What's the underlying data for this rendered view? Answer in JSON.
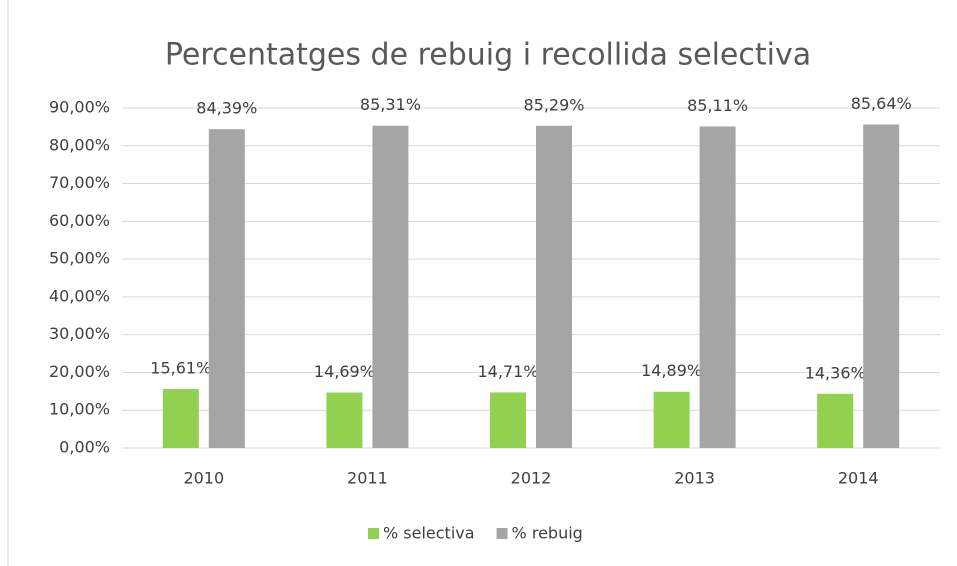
{
  "chart_data": {
    "type": "bar",
    "title": "Percentatges de rebuig i recollida selectiva",
    "categories": [
      "2010",
      "2011",
      "2012",
      "2013",
      "2014"
    ],
    "series": [
      {
        "name": "% selectiva",
        "color": "#92d050",
        "values": [
          15.61,
          14.69,
          14.71,
          14.89,
          14.36
        ],
        "value_labels": [
          "15,61%",
          "14,69%",
          "14,71%",
          "14,89%",
          "14,36%"
        ]
      },
      {
        "name": "% rebuig",
        "color": "#a5a5a5",
        "values": [
          84.39,
          85.31,
          85.29,
          85.11,
          85.64
        ],
        "value_labels": [
          "84,39%",
          "85,31%",
          "85,29%",
          "85,11%",
          "85,64%"
        ]
      }
    ],
    "ylim": [
      0,
      90
    ],
    "yticks": [
      {
        "value": 0,
        "label": "0,00%"
      },
      {
        "value": 10,
        "label": "10,00%"
      },
      {
        "value": 20,
        "label": "20,00%"
      },
      {
        "value": 30,
        "label": "30,00%"
      },
      {
        "value": 40,
        "label": "40,00%"
      },
      {
        "value": 50,
        "label": "50,00%"
      },
      {
        "value": 60,
        "label": "60,00%"
      },
      {
        "value": 70,
        "label": "70,00%"
      },
      {
        "value": 80,
        "label": "80,00%"
      },
      {
        "value": 90,
        "label": "90,00%"
      }
    ],
    "grid": true,
    "legend": "bottom"
  }
}
